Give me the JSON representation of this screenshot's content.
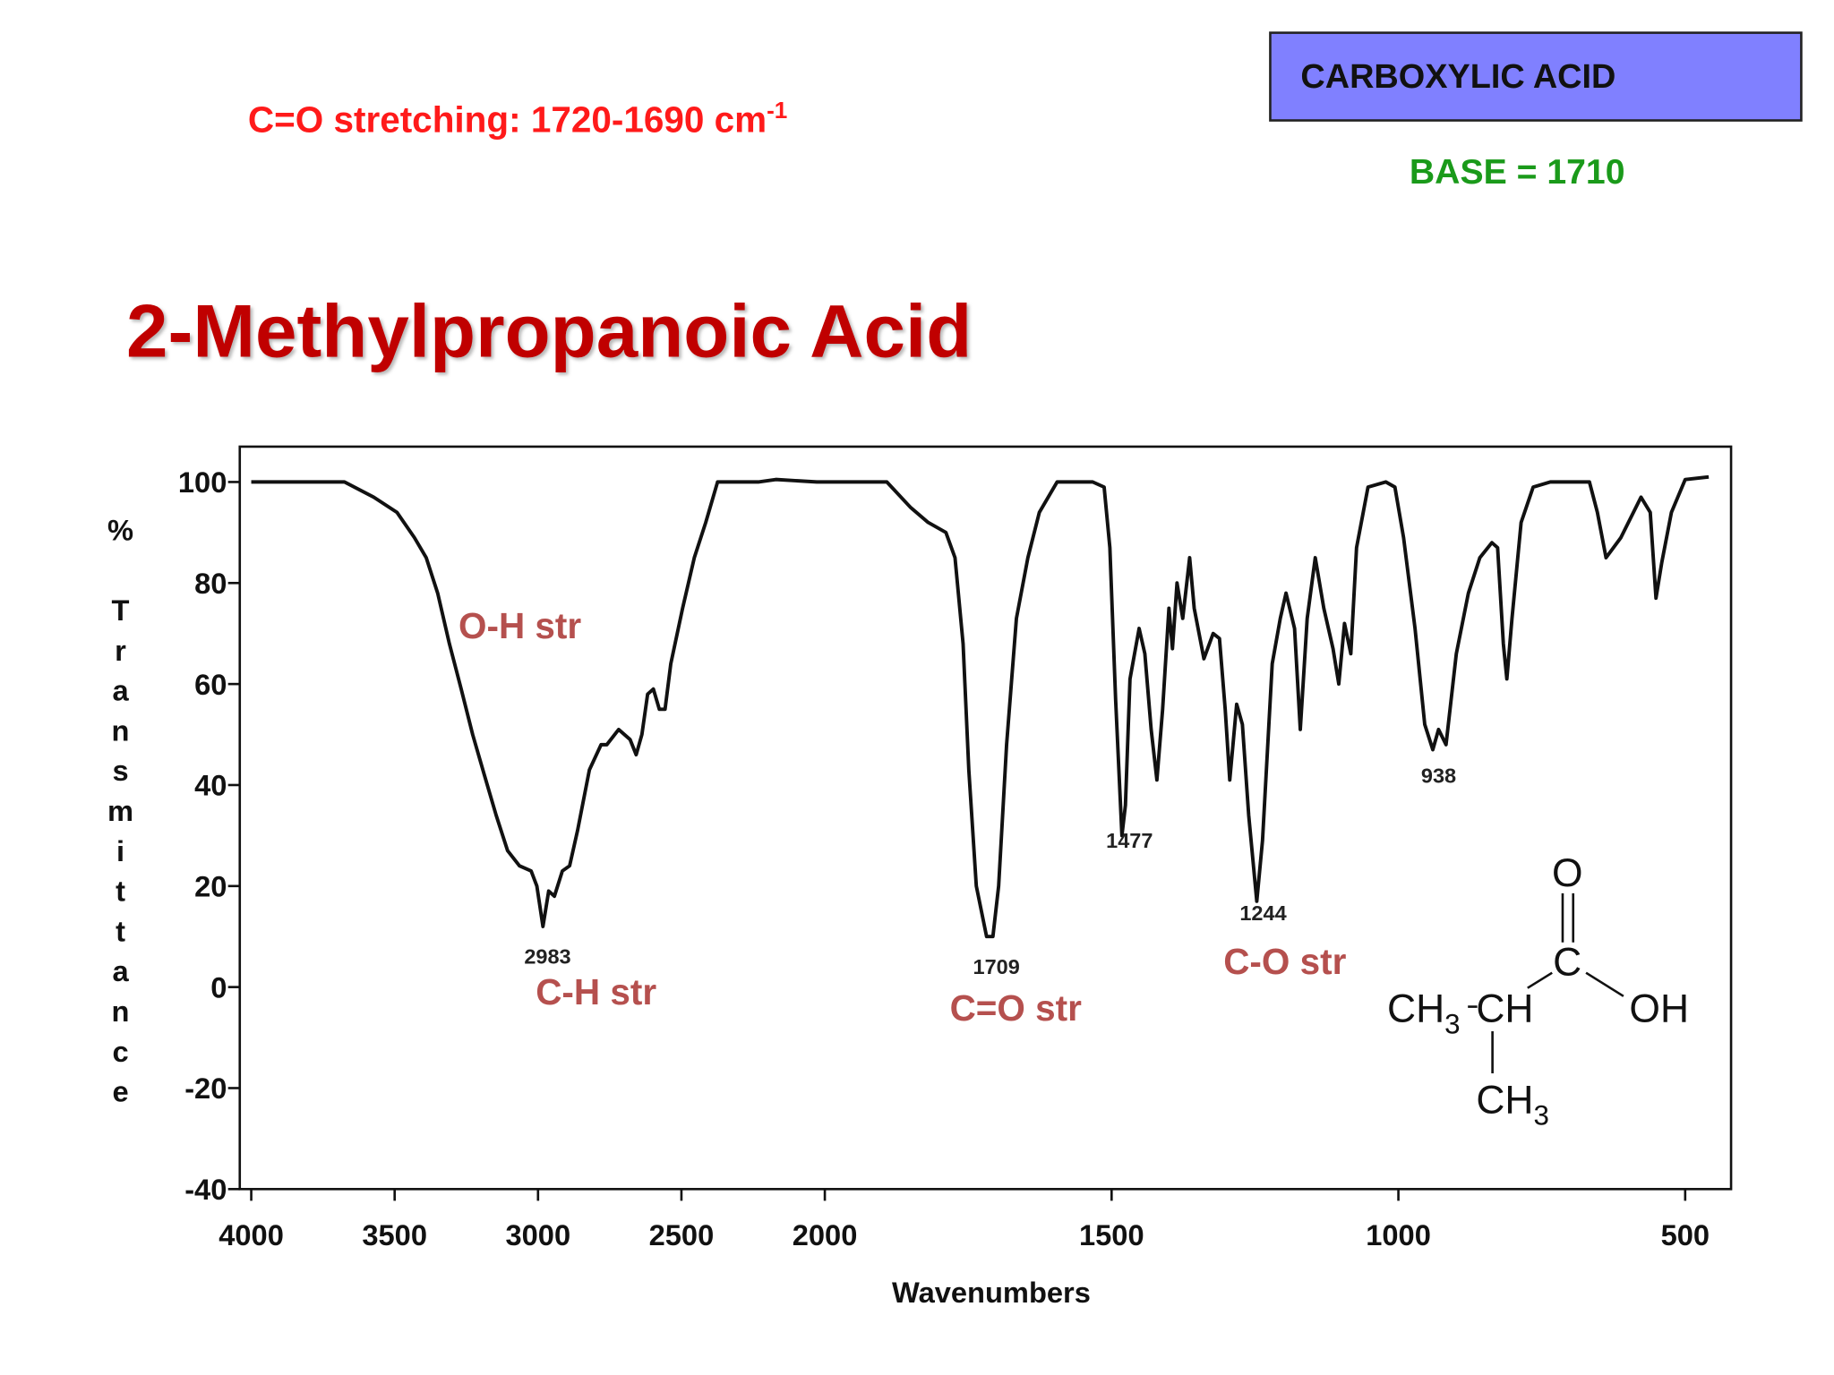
{
  "slide": {
    "note": {
      "text": "C=O stretching: 1720-1690 cm",
      "sup": "-1"
    },
    "box": "CARBOXYLIC ACID",
    "base": "BASE = 1710",
    "title": "2-Methylpropanoic Acid"
  },
  "chart_data": {
    "type": "line",
    "xlabel": "Wavenumbers",
    "ylabel": "% Transmittance",
    "xlim": [
      4040,
      420
    ],
    "x_scale_change": 2000,
    "xticks": [
      4000,
      3500,
      3000,
      2500,
      2000,
      1500,
      1000,
      500
    ],
    "ylim": [
      -40,
      107
    ],
    "yticks": [
      100,
      80,
      60,
      40,
      20,
      0,
      -20,
      -40
    ],
    "color": "#111111",
    "x": [
      4000,
      3675,
      3573,
      3492,
      3431,
      3390,
      3350,
      3309,
      3268,
      3228,
      3187,
      3146,
      3106,
      3065,
      3024,
      3004,
      2983,
      2963,
      2943,
      2915,
      2890,
      2862,
      2821,
      2780,
      2760,
      2719,
      2679,
      2658,
      2638,
      2618,
      2598,
      2577,
      2557,
      2537,
      2496,
      2455,
      2415,
      2374,
      2232,
      2171,
      2028,
      1892,
      1851,
      1820,
      1789,
      1773,
      1759,
      1749,
      1736,
      1718,
      1707,
      1697,
      1683,
      1666,
      1646,
      1626,
      1595,
      1533,
      1513,
      1503,
      1493,
      1482,
      1476,
      1468,
      1452,
      1442,
      1431,
      1421,
      1411,
      1400,
      1394,
      1386,
      1376,
      1364,
      1356,
      1339,
      1323,
      1312,
      1302,
      1294,
      1282,
      1272,
      1261,
      1247,
      1237,
      1220,
      1206,
      1196,
      1181,
      1171,
      1159,
      1145,
      1130,
      1114,
      1104,
      1094,
      1083,
      1073,
      1053,
      1022,
      1006,
      991,
      971,
      954,
      940,
      930,
      917,
      899,
      878,
      858,
      837,
      827,
      817,
      811,
      802,
      786,
      765,
      735,
      667,
      653,
      638,
      612,
      577,
      561,
      551,
      541,
      524,
      500,
      459
    ],
    "values": [
      100,
      100,
      97,
      94,
      89,
      85,
      78,
      68,
      59,
      50,
      42,
      34,
      27,
      24,
      23,
      20,
      12,
      19,
      18,
      23,
      24,
      31,
      43,
      48,
      48,
      51,
      49,
      46,
      50,
      58,
      59,
      55,
      55,
      64,
      75,
      85,
      92,
      100,
      100,
      100.5,
      100,
      100,
      95,
      92,
      90,
      85,
      68,
      43,
      20,
      10,
      10,
      20,
      48,
      73,
      85,
      94,
      100,
      100,
      99,
      87,
      57,
      30,
      36,
      61,
      71,
      66,
      51,
      41,
      55,
      75,
      67,
      80,
      73,
      85,
      75,
      65,
      70,
      69,
      55,
      41,
      56,
      52,
      34,
      17,
      29,
      64,
      73,
      78,
      71,
      51,
      73,
      85,
      75,
      67,
      60,
      72,
      66,
      87,
      99,
      100,
      99,
      89,
      71,
      52,
      47,
      51,
      48,
      66,
      78,
      85,
      88,
      87,
      68,
      61,
      73,
      92,
      99,
      100,
      100,
      94,
      85,
      89,
      97,
      94,
      77,
      84,
      94,
      100.5,
      101
    ],
    "peaks": [
      2983,
      1709,
      1477,
      1244,
      938
    ],
    "bands": [
      "O-H str",
      "C-H str",
      "C=O str",
      "C-O str"
    ],
    "structure": {
      "carbonyl_o": "O",
      "carbonyl_c": "C",
      "methyl_left": {
        "text": "CH",
        "sub": "3"
      },
      "methine": "CH",
      "methyl_bottom": {
        "text": "CH",
        "sub": "3"
      },
      "hydroxyl": "OH"
    }
  }
}
